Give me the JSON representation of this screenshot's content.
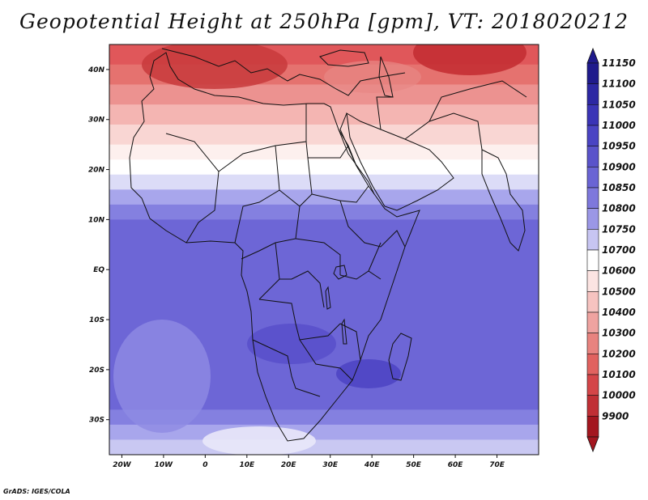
{
  "title": "Geopotential Height at 250hPa [gpm], VT: 2018020212",
  "credit": "GrADS: IGES/COLA",
  "map": {
    "lon_range": [
      -23,
      80
    ],
    "lat_range": [
      -37,
      45
    ],
    "lat_ticks": [
      {
        "value": 40,
        "label": "40N"
      },
      {
        "value": 30,
        "label": "30N"
      },
      {
        "value": 20,
        "label": "20N"
      },
      {
        "value": 10,
        "label": "10N"
      },
      {
        "value": 0,
        "label": "EQ"
      },
      {
        "value": -10,
        "label": "10S"
      },
      {
        "value": -20,
        "label": "20S"
      },
      {
        "value": -30,
        "label": "30S"
      }
    ],
    "lon_ticks": [
      {
        "value": -20,
        "label": "20W"
      },
      {
        "value": -10,
        "label": "10W"
      },
      {
        "value": 0,
        "label": "0"
      },
      {
        "value": 10,
        "label": "10E"
      },
      {
        "value": 20,
        "label": "20E"
      },
      {
        "value": 30,
        "label": "30E"
      },
      {
        "value": 40,
        "label": "40E"
      },
      {
        "value": 50,
        "label": "50E"
      },
      {
        "value": 60,
        "label": "60E"
      },
      {
        "value": 70,
        "label": "70E"
      }
    ],
    "bands": [
      {
        "lat": 45,
        "color": "#e0575a"
      },
      {
        "lat": 41,
        "color": "#e5726f"
      },
      {
        "lat": 37,
        "color": "#ec9290"
      },
      {
        "lat": 33,
        "color": "#f4b5b2"
      },
      {
        "lat": 29,
        "color": "#f9d6d3"
      },
      {
        "lat": 25,
        "color": "#fdf0ee"
      },
      {
        "lat": 22,
        "color": "#ffffff"
      },
      {
        "lat": 19,
        "color": "#dcdcf7"
      },
      {
        "lat": 16,
        "color": "#a8a6ec"
      },
      {
        "lat": 13,
        "color": "#8480e0"
      },
      {
        "lat": 10,
        "color": "#6d66d6"
      },
      {
        "lat": -25,
        "color": "#6d66d6"
      },
      {
        "lat": -28,
        "color": "#8480e0"
      },
      {
        "lat": -31,
        "color": "#a8a6ec"
      },
      {
        "lat": -34,
        "color": "#c9c8f2"
      },
      {
        "lat": -37,
        "color": "#e4e3f8"
      }
    ],
    "colors": {
      "low_extreme": "#b0202a",
      "high_extreme": "#1f1a8c",
      "subtropical_high_core": "#5148c6",
      "mediterranean_trough": "#c83a3c"
    }
  },
  "colorbar": {
    "levels": [
      "11150",
      "11100",
      "11050",
      "11000",
      "10950",
      "10900",
      "10850",
      "10800",
      "10750",
      "10700",
      "10600",
      "10500",
      "10400",
      "10300",
      "10200",
      "10100",
      "10000",
      "9900"
    ],
    "colors": [
      "#1f1a8c",
      "#2c27a3",
      "#3a34b6",
      "#4a44c3",
      "#5a53ca",
      "#6a64d4",
      "#7e78dc",
      "#9b97e6",
      "#c7c5f2",
      "#ffffff",
      "#fce4e2",
      "#f6c3c0",
      "#efa3a0",
      "#e8837f",
      "#e1625f",
      "#d44548",
      "#c02f35",
      "#a3161f"
    ]
  }
}
